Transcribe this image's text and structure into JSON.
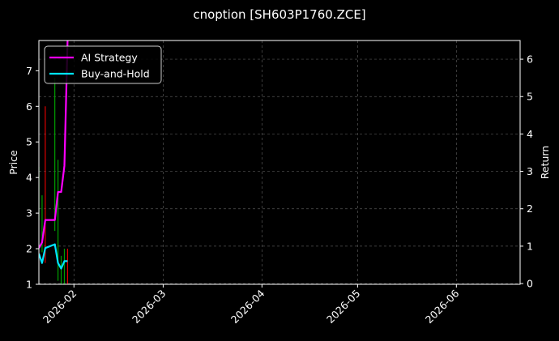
{
  "chart_data": {
    "type": "line",
    "title": "cnoption [SH603P1760.ZCE]",
    "xlabel": "",
    "ylabel_left": "Price",
    "ylabel_right": "Return",
    "x_range": [
      "2026-01-21",
      "2026-06-21"
    ],
    "x_ticks": [
      "2026-02",
      "2026-03",
      "2026-04",
      "2026-05",
      "2026-06"
    ],
    "x_tick_dates": [
      "2026-02-01",
      "2026-03-01",
      "2026-04-01",
      "2026-05-01",
      "2026-06-01"
    ],
    "ylim_left": [
      1,
      7.85
    ],
    "ylim_right": [
      -0.02,
      6.5
    ],
    "yticks_left": [
      1,
      2,
      3,
      4,
      5,
      6,
      7
    ],
    "yticks_right": [
      0,
      1,
      2,
      3,
      4,
      5,
      6
    ],
    "grid": true,
    "legend_position": "top-left",
    "colors": {
      "background": "#000000",
      "ai_strategy": "#ff00ff",
      "buy_and_hold": "#00e5ff",
      "candle_up": "#00a000",
      "candle_down": "#dd0000",
      "grid": "#555555",
      "axis": "#ffffff"
    },
    "series": [
      {
        "name": "AI Strategy",
        "axis": "right",
        "x": [
          "2026-01-21",
          "2026-01-22",
          "2026-01-23",
          "2026-01-26",
          "2026-01-27",
          "2026-01-28",
          "2026-01-29",
          "2026-01-30"
        ],
        "values": [
          0.95,
          1.1,
          1.7,
          1.7,
          2.45,
          2.45,
          3.15,
          6.5
        ]
      },
      {
        "name": "Buy-and-Hold",
        "axis": "right",
        "x": [
          "2026-01-21",
          "2026-01-22",
          "2026-01-23",
          "2026-01-26",
          "2026-01-27",
          "2026-01-28",
          "2026-01-29",
          "2026-01-30"
        ],
        "values": [
          0.8,
          0.55,
          0.95,
          1.05,
          0.55,
          0.4,
          0.6,
          0.6
        ]
      }
    ],
    "candles": [
      {
        "x": "2026-01-21",
        "low": 2.8,
        "high": 4.3,
        "direction": "up"
      },
      {
        "x": "2026-01-22",
        "low": 1.9,
        "high": 3.5,
        "direction": "up"
      },
      {
        "x": "2026-01-23",
        "low": 1.6,
        "high": 6.0,
        "direction": "down"
      },
      {
        "x": "2026-01-26",
        "low": 2.5,
        "high": 6.8,
        "direction": "up"
      },
      {
        "x": "2026-01-27",
        "low": 1.1,
        "high": 4.5,
        "direction": "up"
      },
      {
        "x": "2026-01-28",
        "low": 1.0,
        "high": 1.8,
        "direction": "up"
      },
      {
        "x": "2026-01-29",
        "low": 1.0,
        "high": 2.0,
        "direction": "up"
      },
      {
        "x": "2026-01-30",
        "low": 1.0,
        "high": 2.0,
        "direction": "down"
      }
    ]
  }
}
